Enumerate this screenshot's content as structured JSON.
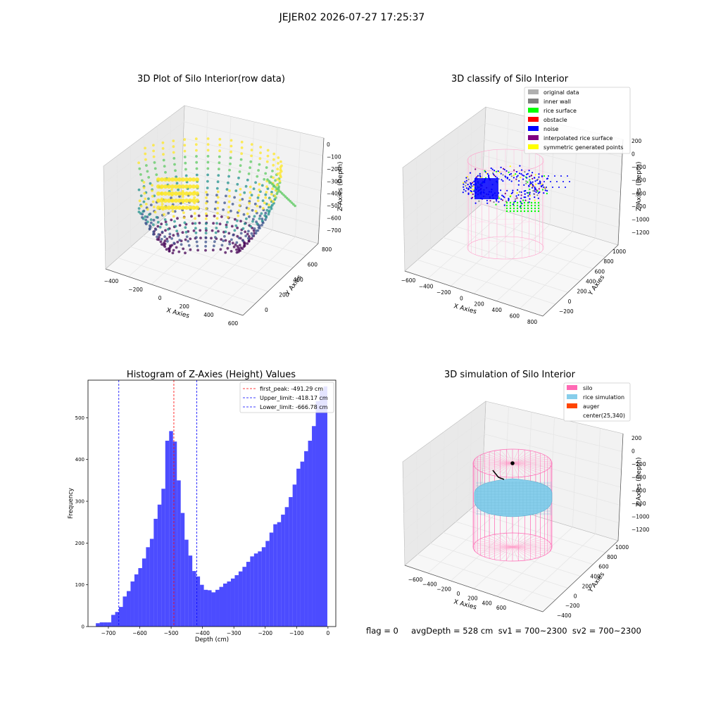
{
  "figure": {
    "title": "JEJER02 2026-07-27 17:25:37",
    "footer": "flag = 0     avgDepth = 528 cm  sv1 = 700~2300  sv2 = 700~2300"
  },
  "panels": {
    "raw": {
      "title": "3D Plot of Silo Interior(row data)",
      "xlabel": "X Axies",
      "ylabel": "Y Axies",
      "zlabel": "Z Axies (Depth)",
      "xticks": [
        "−400",
        "−200",
        "0",
        "200",
        "400",
        "600"
      ],
      "yticks": [
        "0",
        "200",
        "400",
        "600",
        "800"
      ],
      "zticks": [
        "0",
        "−100",
        "−200",
        "−300",
        "−400",
        "−500",
        "−600",
        "−700"
      ],
      "colormap": [
        "#440154",
        "#3b528b",
        "#21918c",
        "#5ec962",
        "#fde725"
      ]
    },
    "classify": {
      "title": "3D classify of Silo Interior",
      "xlabel": "X Axies",
      "ylabel": "Y Axies",
      "zlabel": "Z Axies (Depth)",
      "xticks": [
        "−600",
        "−400",
        "−200",
        "0",
        "200",
        "400",
        "600",
        "800"
      ],
      "yticks": [
        "−200",
        "0",
        "200",
        "400",
        "600",
        "800",
        "1000"
      ],
      "zticks": [
        "200",
        "0",
        "−200",
        "−400",
        "−600",
        "−800",
        "−1000",
        "−1200"
      ],
      "legend": [
        {
          "label": "original data",
          "color": "#b0b0b0"
        },
        {
          "label": "inner wall",
          "color": "#808080"
        },
        {
          "label": "rice surface",
          "color": "#00ff00"
        },
        {
          "label": "obstacle",
          "color": "#ff0000"
        },
        {
          "label": "noise",
          "color": "#0000ff"
        },
        {
          "label": "interpolated rice surface",
          "color": "#800080"
        },
        {
          "label": "symmetric generated points",
          "color": "#ffff00"
        }
      ]
    },
    "simulation": {
      "title": "3D simulation of Silo Interior",
      "xlabel": "X Axies",
      "ylabel": "Y Axies",
      "zlabel": "Z Axies (Depth)",
      "xticks": [
        "−600",
        "−400",
        "−200",
        "0",
        "200",
        "400",
        "600"
      ],
      "yticks": [
        "−400",
        "−200",
        "0",
        "200",
        "400",
        "600",
        "800",
        "1000"
      ],
      "zticks": [
        "200",
        "0",
        "−200",
        "−400",
        "−600",
        "−800",
        "−1000",
        "−1200"
      ],
      "legend": [
        {
          "label": "silo",
          "color": "#ff69b4"
        },
        {
          "label": "rice simulation",
          "color": "#87ceeb"
        },
        {
          "label": "auger",
          "color": "#ff4500"
        },
        {
          "label": "center(25,340)",
          "color": ""
        }
      ]
    }
  },
  "chart_data": {
    "type": "bar",
    "title": "Histogram of Z-Axies (Height) Values",
    "xlabel": "Depth (cm)",
    "ylabel": "Frequency",
    "xlim": [
      -765,
      25
    ],
    "ylim": [
      0,
      590
    ],
    "xticks": [
      -700,
      -600,
      -500,
      -400,
      -300,
      -200,
      -100,
      0
    ],
    "yticks": [
      0,
      100,
      200,
      300,
      400,
      500
    ],
    "bin_width": 12.3,
    "bins_start": [
      -740,
      -727.7,
      -715.4,
      -703.1,
      -690.8,
      -678.5,
      -666.2,
      -653.9,
      -641.6,
      -629.3,
      -617,
      -604.7,
      -592.4,
      -580.1,
      -567.8,
      -555.5,
      -543.2,
      -530.9,
      -518.6,
      -506.3,
      -494,
      -481.7,
      -469.4,
      -457.1,
      -444.8,
      -432.5,
      -420.2,
      -407.9,
      -395.6,
      -383.3,
      -371,
      -358.7,
      -346.4,
      -334.1,
      -321.8,
      -309.5,
      -297.2,
      -284.9,
      -272.6,
      -260.3,
      -248,
      -235.7,
      -223.4,
      -211.1,
      -198.8,
      -186.5,
      -174.2,
      -161.9,
      -149.6,
      -137.3,
      -125,
      -112.7,
      -100.4,
      -88.1,
      -75.8,
      -63.5,
      -51.2,
      -38.9,
      -26.6,
      -14.3
    ],
    "values": [
      8,
      10,
      10,
      10,
      28,
      35,
      47,
      72,
      85,
      108,
      125,
      140,
      163,
      190,
      210,
      258,
      292,
      330,
      445,
      468,
      443,
      350,
      272,
      208,
      170,
      133,
      120,
      100,
      88,
      87,
      82,
      88,
      95,
      103,
      108,
      115,
      123,
      132,
      143,
      155,
      168,
      175,
      180,
      190,
      205,
      225,
      245,
      250,
      268,
      286,
      310,
      340,
      378,
      395,
      420,
      445,
      480,
      540,
      565,
      575
    ],
    "series": [
      {
        "name": "",
        "color": "#0000ff"
      }
    ],
    "reference_lines": [
      {
        "label": "first_peak: -491.29 cm",
        "x": -491.29,
        "color": "#ff0000"
      },
      {
        "label": "Upper_limit: -418.17 cm",
        "x": -418.17,
        "color": "#0000ff"
      },
      {
        "label": "Lower_limit: -666.78 cm",
        "x": -666.78,
        "color": "#0000ff"
      }
    ],
    "legend_position": "top-right"
  }
}
